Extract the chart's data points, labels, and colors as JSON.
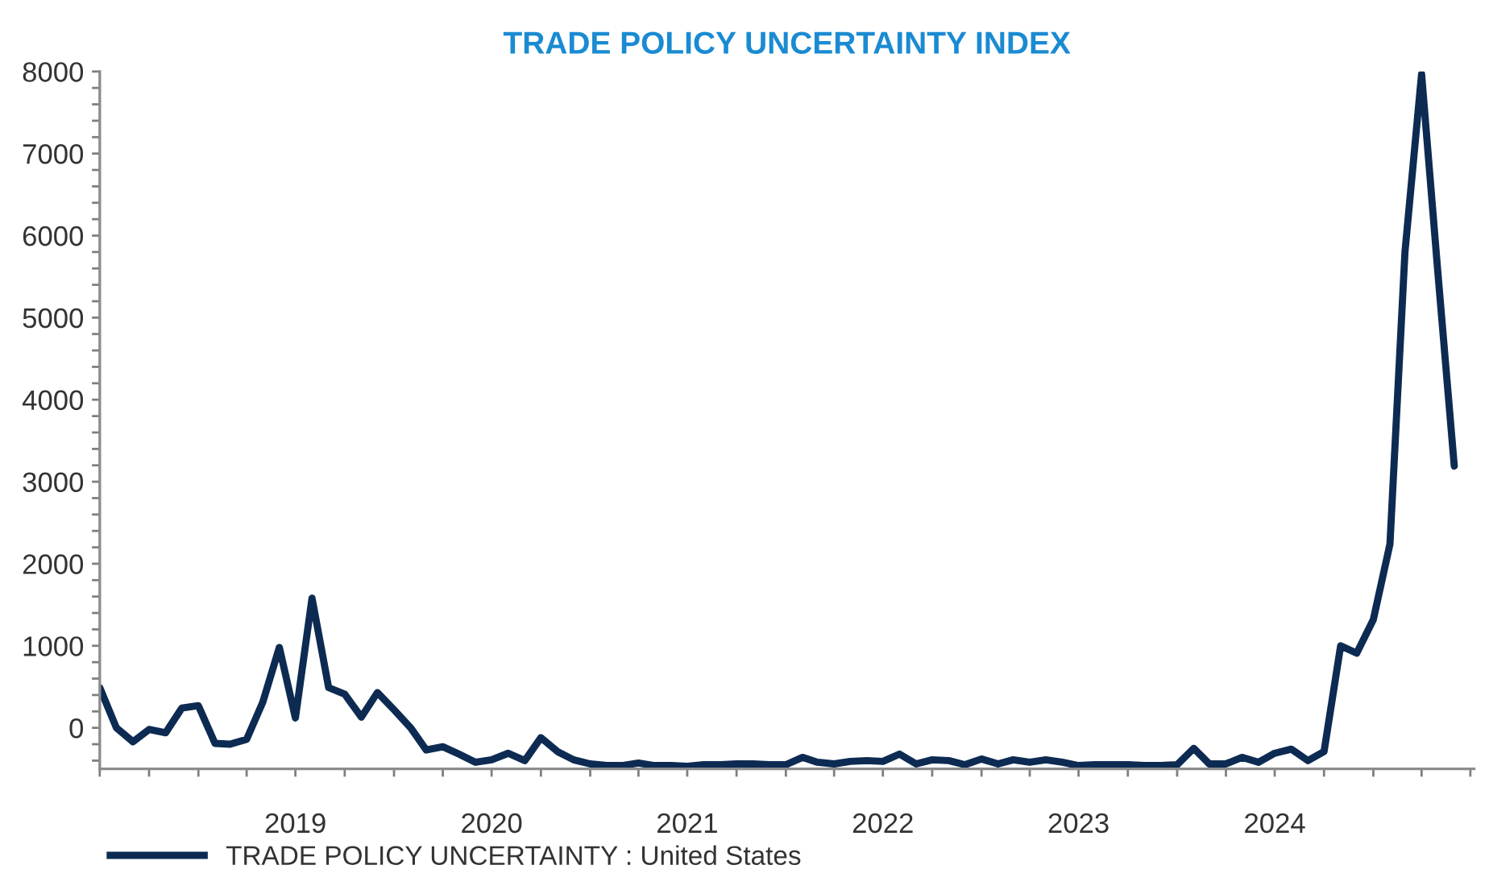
{
  "chart_data": {
    "type": "line",
    "title": "TRADE POLICY UNCERTAINTY INDEX",
    "x": [
      "2018-07",
      "2018-08",
      "2018-09",
      "2018-10",
      "2018-11",
      "2018-12",
      "2019-01",
      "2019-02",
      "2019-03",
      "2019-04",
      "2019-05",
      "2019-06",
      "2019-07",
      "2019-08",
      "2019-09",
      "2019-10",
      "2019-11",
      "2019-12",
      "2020-01",
      "2020-02",
      "2020-03",
      "2020-04",
      "2020-05",
      "2020-06",
      "2020-07",
      "2020-08",
      "2020-09",
      "2020-10",
      "2020-11",
      "2020-12",
      "2021-01",
      "2021-02",
      "2021-03",
      "2021-04",
      "2021-05",
      "2021-06",
      "2021-07",
      "2021-08",
      "2021-09",
      "2021-10",
      "2021-11",
      "2021-12",
      "2022-01",
      "2022-02",
      "2022-03",
      "2022-04",
      "2022-05",
      "2022-06",
      "2022-07",
      "2022-08",
      "2022-09",
      "2022-10",
      "2022-11",
      "2022-12",
      "2023-01",
      "2023-02",
      "2023-03",
      "2023-04",
      "2023-05",
      "2023-06",
      "2023-07",
      "2023-08",
      "2023-09",
      "2023-10",
      "2023-11",
      "2023-12",
      "2024-01",
      "2024-02",
      "2024-03",
      "2024-04",
      "2024-05",
      "2024-06",
      "2024-07",
      "2024-08",
      "2024-09",
      "2024-10",
      "2024-11",
      "2024-12",
      "2025-01",
      "2025-02",
      "2025-03",
      "2025-04",
      "2025-05",
      "2025-06"
    ],
    "series": [
      {
        "name": "TRADE POLICY UNCERTAINTY : United States",
        "color": "#0d2b52",
        "values": [
          490,
          0,
          -170,
          -20,
          -60,
          240,
          270,
          -190,
          -200,
          -140,
          310,
          980,
          120,
          1580,
          490,
          410,
          130,
          430,
          220,
          0,
          -270,
          -230,
          -320,
          -420,
          -390,
          -310,
          -400,
          -120,
          -290,
          -390,
          -440,
          -460,
          -460,
          -430,
          -460,
          -460,
          -470,
          -450,
          -450,
          -440,
          -440,
          -450,
          -450,
          -360,
          -420,
          -440,
          -410,
          -400,
          -410,
          -320,
          -440,
          -390,
          -400,
          -450,
          -380,
          -440,
          -390,
          -420,
          -390,
          -420,
          -460,
          -450,
          -450,
          -450,
          -460,
          -460,
          -450,
          -250,
          -440,
          -440,
          -360,
          -420,
          -310,
          -260,
          -400,
          -290,
          1000,
          910,
          1320,
          2240,
          5800,
          7970,
          5580,
          3190
        ]
      }
    ],
    "xlim": [
      "2018-07-01",
      "2025-07-08"
    ],
    "xticks": [
      {
        "value": "2018-07-01",
        "label": null
      },
      {
        "value": "2018-10-01",
        "label": null
      },
      {
        "value": "2019-01-01",
        "label": null
      },
      {
        "value": "2019-04-01",
        "label": null
      },
      {
        "value": "2019-07-01",
        "label": "2019"
      },
      {
        "value": "2019-10-01",
        "label": null
      },
      {
        "value": "2020-01-01",
        "label": null
      },
      {
        "value": "2020-04-01",
        "label": null
      },
      {
        "value": "2020-07-01",
        "label": "2020"
      },
      {
        "value": "2020-10-01",
        "label": null
      },
      {
        "value": "2021-01-01",
        "label": null
      },
      {
        "value": "2021-04-01",
        "label": null
      },
      {
        "value": "2021-07-01",
        "label": "2021"
      },
      {
        "value": "2021-10-01",
        "label": null
      },
      {
        "value": "2022-01-01",
        "label": null
      },
      {
        "value": "2022-04-01",
        "label": null
      },
      {
        "value": "2022-07-01",
        "label": "2022"
      },
      {
        "value": "2022-10-01",
        "label": null
      },
      {
        "value": "2023-01-01",
        "label": null
      },
      {
        "value": "2023-04-01",
        "label": null
      },
      {
        "value": "2023-07-01",
        "label": "2023"
      },
      {
        "value": "2023-10-01",
        "label": null
      },
      {
        "value": "2024-01-01",
        "label": null
      },
      {
        "value": "2024-04-01",
        "label": null
      },
      {
        "value": "2024-07-01",
        "label": "2024"
      },
      {
        "value": "2024-10-01",
        "label": null
      },
      {
        "value": "2025-01-01",
        "label": null
      },
      {
        "value": "2025-04-01",
        "label": null
      },
      {
        "value": "2025-07-01",
        "label": null
      }
    ],
    "ylim": [
      -500,
      8000
    ],
    "yticks": [
      {
        "value": -400,
        "label": null
      },
      {
        "value": -200,
        "label": null
      },
      0,
      {
        "value": 200,
        "label": null
      },
      {
        "value": 400,
        "label": null
      },
      {
        "value": 600,
        "label": null
      },
      {
        "value": 800,
        "label": null
      },
      1000,
      {
        "value": 1200,
        "label": null
      },
      {
        "value": 1400,
        "label": null
      },
      {
        "value": 1600,
        "label": null
      },
      {
        "value": 1800,
        "label": null
      },
      2000,
      {
        "value": 2200,
        "label": null
      },
      {
        "value": 2400,
        "label": null
      },
      {
        "value": 2600,
        "label": null
      },
      {
        "value": 2800,
        "label": null
      },
      3000,
      {
        "value": 3200,
        "label": null
      },
      {
        "value": 3400,
        "label": null
      },
      {
        "value": 3600,
        "label": null
      },
      {
        "value": 3800,
        "label": null
      },
      4000,
      {
        "value": 4200,
        "label": null
      },
      {
        "value": 4400,
        "label": null
      },
      {
        "value": 4600,
        "label": null
      },
      {
        "value": 4800,
        "label": null
      },
      5000,
      {
        "value": 5200,
        "label": null
      },
      {
        "value": 5400,
        "label": null
      },
      {
        "value": 5600,
        "label": null
      },
      {
        "value": 5800,
        "label": null
      },
      6000,
      {
        "value": 6200,
        "label": null
      },
      {
        "value": 6400,
        "label": null
      },
      {
        "value": 6600,
        "label": null
      },
      {
        "value": 6800,
        "label": null
      },
      7000,
      {
        "value": 7200,
        "label": null
      },
      {
        "value": 7400,
        "label": null
      },
      {
        "value": 7600,
        "label": null
      },
      {
        "value": 7800,
        "label": null
      },
      8000
    ],
    "grid": false,
    "legend": "bottom left",
    "marker": "none",
    "line_style": "solid"
  }
}
